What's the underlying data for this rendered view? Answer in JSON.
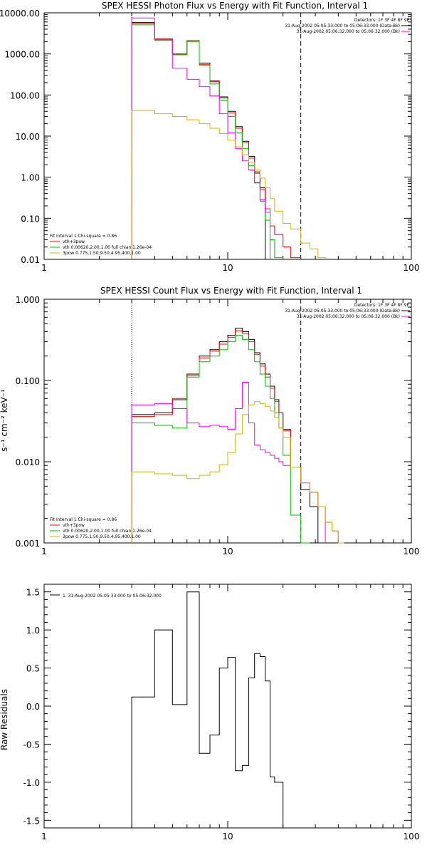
{
  "chart_data": [
    {
      "type": "line",
      "title": "SPEX HESSI Photon Flux vs Energy with Fit Function, Interval 1",
      "xscale": "log",
      "yscale": "log",
      "xlim": [
        1,
        100
      ],
      "ylim": [
        0.01,
        10000
      ],
      "x_ticks": [
        "1",
        "10",
        "100"
      ],
      "y_ticks": [
        "0.01",
        "0.10",
        "1.00",
        "10.00",
        "100.00",
        "1000.00",
        "10000.00"
      ],
      "legend_top_right": {
        "header": "Detectors: 1F 3F 4F 8F 9F",
        "entries": [
          "31-Aug-2002 05:05:33.000 to 05:06:33.000 (Data-Bk)",
          "31-Aug-2002 05:06:32.000 to 05:06:32.000 (Bk)"
        ]
      },
      "legend_bottom_left": {
        "header": "Fit Interval  1    Chi-square = 0.86",
        "entries": [
          "vth+3pow",
          "vth 0.00620,2.00,1.00  full chian 1.26e-04",
          "3pow 0.775,1.50,9.50,4.95,400,1.00"
        ]
      },
      "vertical_lines": [
        {
          "x": 3,
          "style": "dotted"
        },
        {
          "x": 25,
          "style": "dashed"
        }
      ],
      "edges": [
        3,
        4,
        5,
        6,
        7,
        8,
        9,
        10,
        11,
        12,
        13,
        14,
        15,
        16,
        17,
        18,
        20,
        22,
        25,
        28,
        31,
        34,
        37,
        40
      ],
      "series": [
        {
          "color": "#000000",
          "values": [
            5800,
            2300,
            1000,
            2100,
            600,
            220,
            90,
            40,
            17,
            7.5,
            3.2,
            1.35,
            0.55
          ]
        },
        {
          "color": "#ff0000",
          "values": [
            5500,
            2300,
            1000,
            2100,
            560,
            210,
            85,
            37,
            15.5,
            7,
            2.9,
            1.25,
            0.5,
            0.17,
            0.065,
            0.04,
            0.02,
            0.011
          ]
        },
        {
          "color": "#00c000",
          "values": [
            5100,
            2150,
            950,
            2000,
            530,
            185,
            75,
            30,
            12,
            5,
            1.9,
            0.72,
            0.26,
            0.09,
            0.03,
            0.011
          ]
        },
        {
          "color": "#ff00ff",
          "values": [
            7500,
            2200,
            450,
            240,
            160,
            95,
            35,
            12,
            5,
            2.5,
            1.5,
            0.75,
            0.28,
            0.14
          ]
        },
        {
          "color": "#d4b400",
          "values": [
            42,
            35,
            30,
            25,
            20,
            15.5,
            11.5,
            8,
            5.5,
            3.5,
            2.3,
            1.5,
            0.95,
            0.55,
            0.3,
            0.15,
            0.075,
            0.055,
            0.025,
            0.018,
            0.011
          ]
        }
      ]
    },
    {
      "type": "line",
      "title": "SPEX HESSI Count Flux vs Energy with Fit Function, Interval 1",
      "ylabel": "s⁻¹ cm⁻² keV⁻¹",
      "xscale": "log",
      "yscale": "log",
      "xlim": [
        1,
        100
      ],
      "ylim": [
        0.001,
        1
      ],
      "x_ticks": [
        "1",
        "10",
        "100"
      ],
      "y_ticks": [
        "0.001",
        "0.010",
        "0.100",
        "1.000"
      ],
      "legend_top_right": {
        "header": "Detectors: 1F 3F 4F 8F 9F",
        "entries": [
          "31-Aug-2002 05:05:33.000 to 05:06:33.000 (Data-Bk)",
          "31-Aug-2002 05:06:32.000 to 05:06:32.000 (Bk)"
        ]
      },
      "legend_bottom_left": {
        "header": "Fit Interval  1    Chi-square = 0.86",
        "entries": [
          "vth+3pow",
          "vth 0.00620,2.00,1.00  full chian 1.26e-04",
          "3pow 0.775,1.50,9.50,4.95,400,1.00"
        ]
      },
      "vertical_lines": [
        {
          "x": 3,
          "style": "dotted"
        },
        {
          "x": 25,
          "style": "dashed"
        }
      ],
      "edges": [
        3,
        4,
        5,
        6,
        7,
        8,
        9,
        10,
        11,
        12,
        13,
        14,
        15,
        16,
        17,
        18,
        19,
        20,
        22,
        25,
        28,
        31,
        34,
        37,
        40,
        43
      ],
      "series": [
        {
          "color": "#000000",
          "values": [
            0.038,
            0.04,
            0.058,
            0.12,
            0.2,
            0.24,
            0.3,
            0.36,
            0.44,
            0.4,
            0.32,
            0.22,
            0.16,
            0.12,
            0.085,
            0.058,
            0.04,
            0.025,
            0.0085,
            0.0045,
            0.0028
          ]
        },
        {
          "color": "#ff0000",
          "values": [
            0.036,
            0.038,
            0.06,
            0.115,
            0.19,
            0.23,
            0.28,
            0.34,
            0.41,
            0.38,
            0.3,
            0.21,
            0.15,
            0.11,
            0.08,
            0.055,
            0.04,
            0.024,
            0.0085,
            0.0055,
            0.0042,
            0.0028,
            0.0018,
            0.0014,
            0.001
          ]
        },
        {
          "color": "#00c000",
          "values": [
            0.03,
            0.028,
            0.026,
            0.11,
            0.17,
            0.2,
            0.24,
            0.3,
            0.36,
            0.32,
            0.24,
            0.17,
            0.12,
            0.085,
            0.06,
            0.04,
            0.026,
            0.012,
            0.0022,
            0.001
          ]
        },
        {
          "color": "#ff00ff",
          "values": [
            0.05,
            0.052,
            0.045,
            0.03,
            0.027,
            0.028,
            0.027,
            0.025,
            0.045,
            0.095,
            0.03,
            0.016,
            0.014,
            0.013,
            0.012,
            0.011,
            0.01,
            0.009,
            0.0085,
            0.0055,
            0.0042,
            0.0028
          ]
        },
        {
          "color": "#d4b400",
          "values": [
            0.0075,
            0.0071,
            0.0068,
            0.0062,
            0.0068,
            0.0075,
            0.0092,
            0.013,
            0.022,
            0.038,
            0.05,
            0.055,
            0.052,
            0.048,
            0.042,
            0.035,
            0.026,
            0.02,
            0.0085,
            0.0055,
            0.0042,
            0.0028,
            0.0018,
            0.0014,
            0.001
          ]
        }
      ]
    },
    {
      "type": "line",
      "ylabel": "Raw Residuals",
      "xscale": "log",
      "yscale": "linear",
      "xlim": [
        1,
        100
      ],
      "ylim": [
        -1.6,
        1.6
      ],
      "x_ticks": [
        "1",
        "10",
        "100"
      ],
      "y_ticks": [
        "-1.5",
        "-1.0",
        "-0.5",
        "0.0",
        "0.5",
        "1.0",
        "1.5"
      ],
      "legend": "1. 31-Aug-2002 05:05:33.000 to 05:06:32.000",
      "edges": [
        3,
        4,
        5,
        6,
        7,
        8,
        9,
        10,
        11,
        12,
        13,
        14,
        15,
        16,
        17,
        18,
        20,
        22,
        25
      ],
      "series": [
        {
          "color": "#000000",
          "values": [
            0.12,
            1.0,
            0.02,
            1.5,
            -0.62,
            -0.38,
            0.5,
            0.64,
            -0.85,
            -0.78,
            0.37,
            0.69,
            0.65,
            0.33,
            -0.93,
            -1.0,
            -1.6,
            -1.6
          ]
        }
      ]
    }
  ]
}
